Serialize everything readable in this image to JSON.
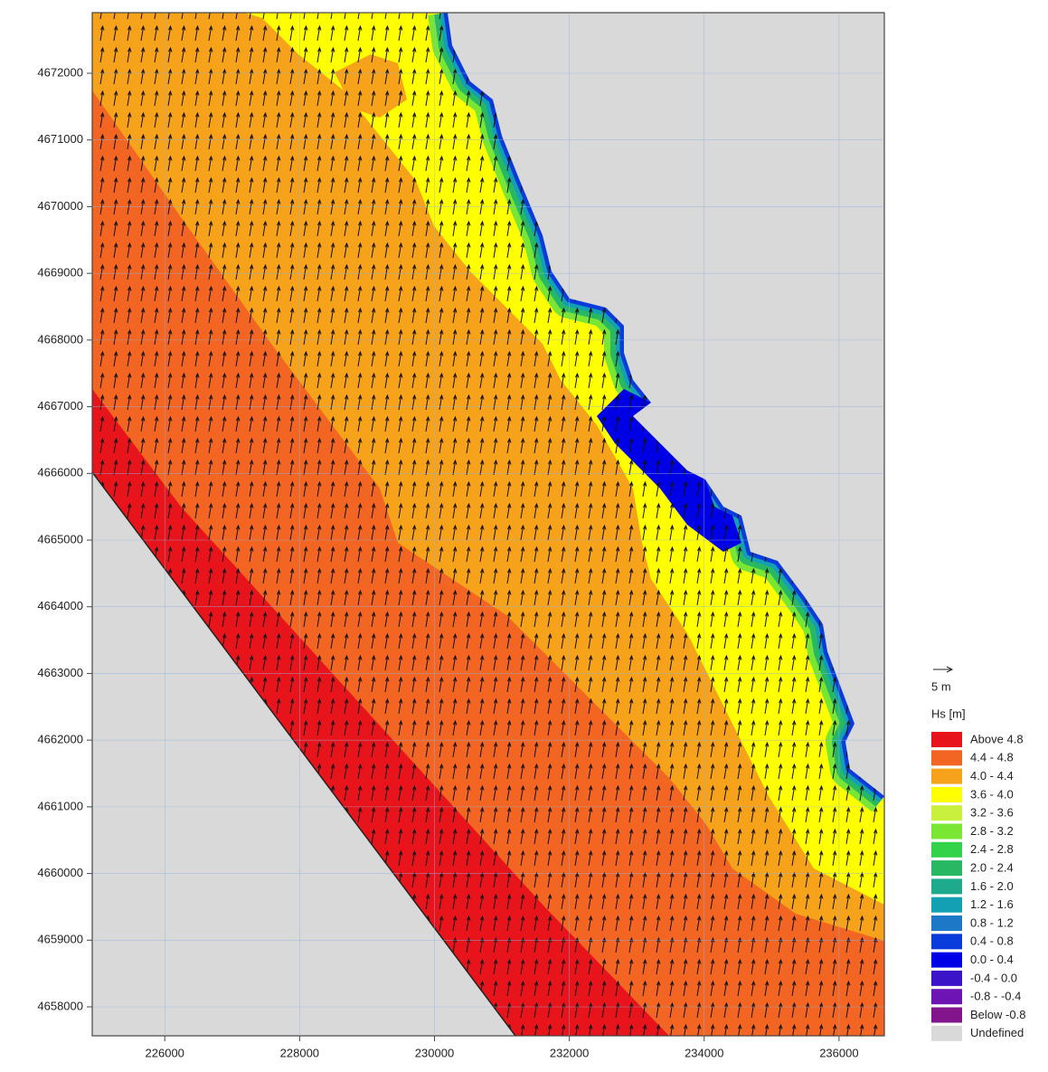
{
  "map": {
    "xlim": [
      224924,
      236672
    ],
    "ylim": [
      4657566,
      4672909
    ],
    "xticks": [
      226000,
      228000,
      230000,
      232000,
      234000,
      236000
    ],
    "yticks": [
      4658000,
      4659000,
      4660000,
      4661000,
      4662000,
      4663000,
      4664000,
      4665000,
      4666000,
      4667000,
      4668000,
      4669000,
      4670000,
      4671000,
      4672000
    ],
    "grid": true
  },
  "legend": {
    "arrow_label": "5 m",
    "title": "Hs [m]",
    "items": [
      {
        "label": "Above 4.8",
        "color": "#e8141c"
      },
      {
        "label": "4.4 - 4.8",
        "color": "#f26522"
      },
      {
        "label": "4.0 - 4.4",
        "color": "#f7a21b"
      },
      {
        "label": "3.6 - 4.0",
        "color": "#ffff00"
      },
      {
        "label": "3.2 - 3.6",
        "color": "#c8f03c"
      },
      {
        "label": "2.8 - 3.2",
        "color": "#78e632"
      },
      {
        "label": "2.4 - 2.8",
        "color": "#32d24b"
      },
      {
        "label": "2.0 - 2.4",
        "color": "#28b864"
      },
      {
        "label": "1.6 - 2.0",
        "color": "#1eaa8c"
      },
      {
        "label": "1.2 - 1.6",
        "color": "#14a0b4"
      },
      {
        "label": "0.8 - 1.2",
        "color": "#1e78c8"
      },
      {
        "label": "0.4 - 0.8",
        "color": "#0a3cdc"
      },
      {
        "label": "0.0 - 0.4",
        "color": "#0000e6"
      },
      {
        "label": "-0.4 - 0.0",
        "color": "#3c14c8"
      },
      {
        "label": "-0.8 - -0.4",
        "color": "#6e14b4"
      },
      {
        "label": "Below -0.8",
        "color": "#82148c"
      },
      {
        "label": "Undefined",
        "color": "#d9d9d9"
      }
    ]
  }
}
